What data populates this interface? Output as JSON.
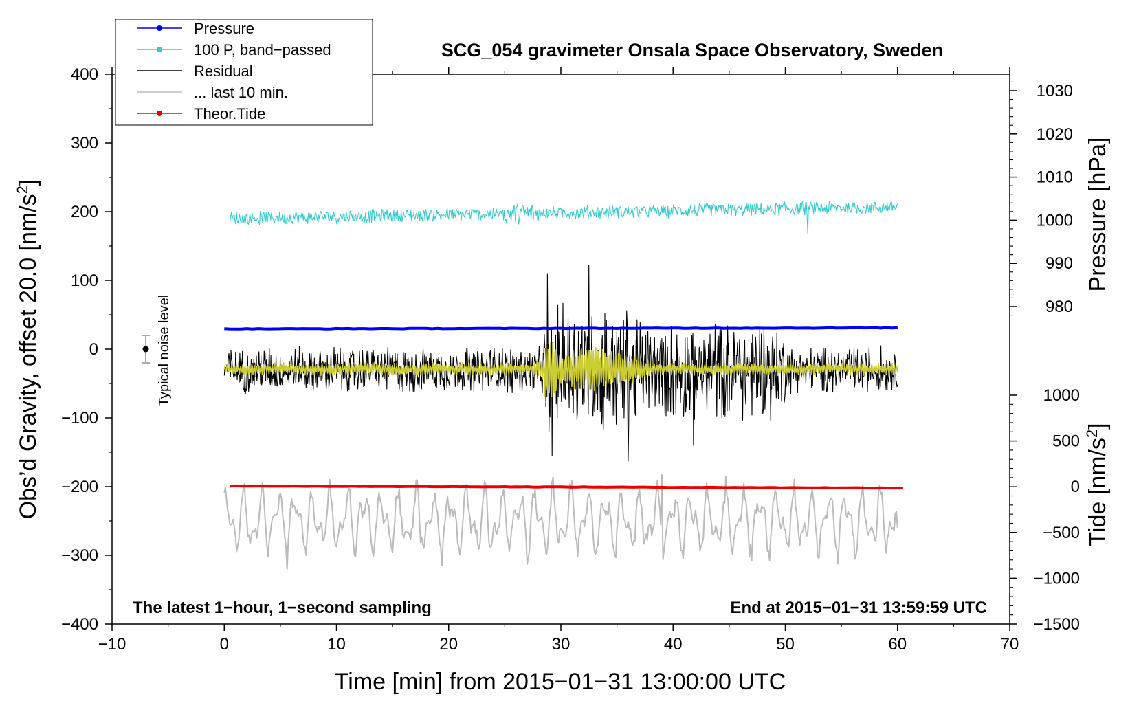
{
  "chart_data": {
    "type": "line",
    "title": "SCG_054 gravimeter Onsala Space Observatory, Sweden",
    "xlabel": "Time [min] from 2015−01−31 13:00:00 UTC",
    "ylabel_left": "Obs’d Gravity, offset 20.0 [nm/s",
    "ylabel_left_sup": "2",
    "ylabel_left_end": "]",
    "ylabel_right_pressure": "Pressure [hPa]",
    "ylabel_right_tide": "Tide [nm/s",
    "ylabel_right_tide_sup": "2",
    "ylabel_right_tide_end": "]",
    "xlim": [
      -10,
      70
    ],
    "ylim_left": [
      -400,
      400
    ],
    "x_ticks": [
      -10,
      0,
      10,
      20,
      30,
      40,
      50,
      60,
      70
    ],
    "x_tick_labels": [
      "−10",
      "0",
      "10",
      "20",
      "30",
      "40",
      "50",
      "60",
      "70"
    ],
    "y_ticks_left": [
      400,
      300,
      200,
      100,
      0,
      -100,
      -200,
      -300,
      -400
    ],
    "y_tick_labels_left": [
      "400",
      "300",
      "200",
      "100",
      "0",
      "−100",
      "−200",
      "−300",
      "−400"
    ],
    "pressure_axis": {
      "ticks": [
        1030,
        1020,
        1010,
        1000,
        990,
        980
      ],
      "tick_labels": [
        "1030",
        "1020",
        "1010",
        "1000",
        "990",
        "980"
      ],
      "left_equivalent": {
        "value_a": 1030,
        "gravity_a": 376,
        "value_b": 980,
        "gravity_b": 62
      }
    },
    "tide_axis": {
      "ticks": [
        1000,
        500,
        0,
        -500,
        -1000,
        -1500
      ],
      "tick_labels": [
        "1000",
        "500",
        "0",
        "−500",
        "−1000",
        "−1500"
      ],
      "left_equivalent": {
        "value_a": 1000,
        "gravity_a": -67,
        "value_b": -1500,
        "gravity_b": -400
      }
    },
    "series": [
      {
        "name": "Pressure",
        "color": "#0000ff",
        "x_range": [
          0,
          60
        ],
        "base": 29.5,
        "end": 31,
        "style": "flat-thick"
      },
      {
        "name": "100 P, band−passed",
        "color": "#33cccc",
        "x_range": [
          0.5,
          60
        ],
        "base": 190,
        "end": 207,
        "amplitude": 12,
        "style": "noise"
      },
      {
        "name": "Residual",
        "color": "#000000",
        "x_range": [
          0,
          60
        ],
        "base": -30,
        "amplitude": 28,
        "burst_amplitude": 110,
        "burst_range": [
          28.5,
          37
        ],
        "extremes": [
          {
            "x": 28.8,
            "y": 110
          },
          {
            "x": 29.2,
            "y": -155
          },
          {
            "x": 32.5,
            "y": 122
          },
          {
            "x": 36,
            "y": -163
          },
          {
            "x": 41.8,
            "y": -140
          }
        ],
        "style": "noise"
      },
      {
        "name": "... last 10 min.",
        "color": "#bbbbbb",
        "x_range": [
          0,
          60
        ],
        "base": -250,
        "amplitude": 55,
        "peaks": [
          {
            "x": 39,
            "y": -183
          },
          {
            "x": 5.6,
            "y": -320
          },
          {
            "x": 19.4,
            "y": -315
          }
        ],
        "style": "wave"
      },
      {
        "name": "Theor.Tide",
        "color": "#ee0000",
        "x_range": [
          0.5,
          60.5
        ],
        "base": -199,
        "end": -202,
        "style": "flat-thick"
      },
      {
        "name": "filtered residual",
        "color": "#cccc33",
        "x_range": [
          0,
          60
        ],
        "base": -29,
        "amplitude": 5,
        "burst_amplitude": 36,
        "burst_range": [
          27.5,
          38
        ],
        "style": "noise",
        "in_legend": false
      }
    ],
    "legend": [
      {
        "label": "Pressure",
        "color": "#0000ff",
        "marker": true
      },
      {
        "label": "100 P, band−passed",
        "color": "#33cccc",
        "marker": true
      },
      {
        "label": "Residual",
        "color": "#000000",
        "marker": false
      },
      {
        "label": "... last 10 min.",
        "color": "#bbbbbb",
        "marker": false
      },
      {
        "label": "Theor.Tide",
        "color": "#ee0000",
        "marker": true
      }
    ],
    "annotations": {
      "bottom_left": "The latest 1−hour, 1−second sampling",
      "bottom_right": "End at 2015−01−31 13:59:59 UTC",
      "noise_label": "Typical noise level",
      "noise_bar": {
        "x": -7,
        "y": 0,
        "error": 20
      }
    }
  }
}
